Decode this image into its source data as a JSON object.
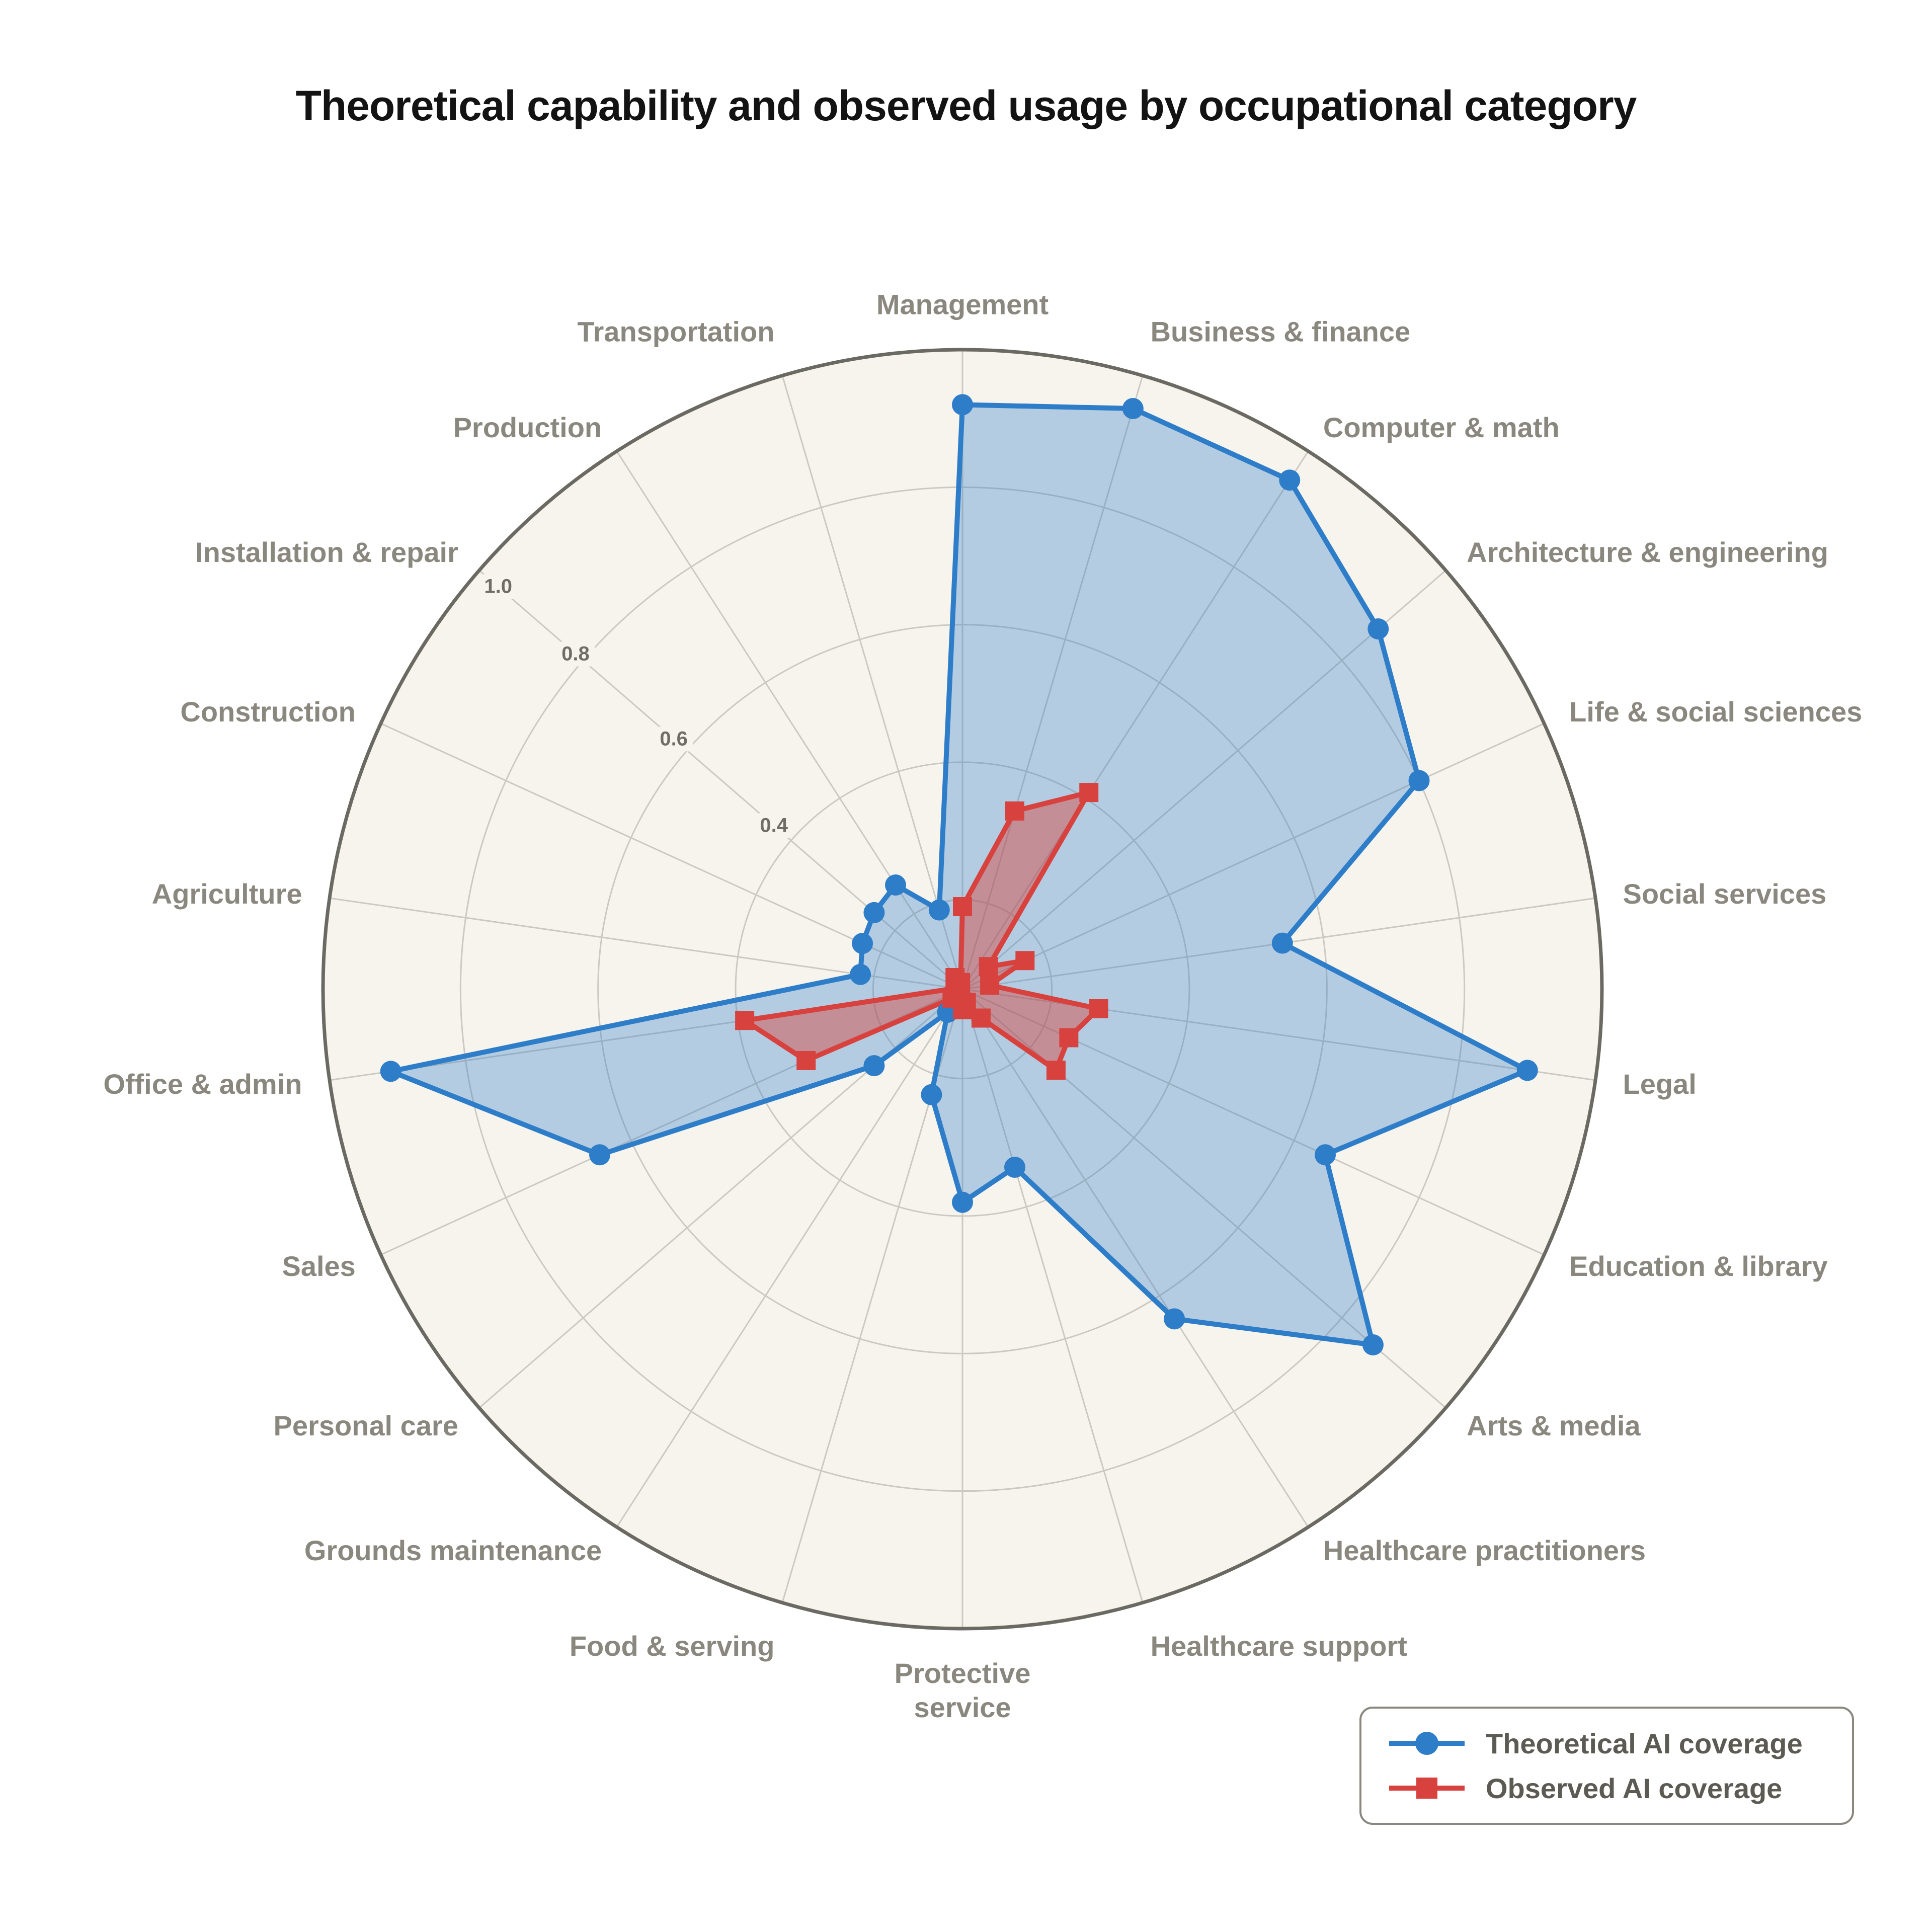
{
  "title": "Theoretical capability and observed usage by occupational category",
  "chart_data": {
    "type": "radar",
    "categories": [
      "Management",
      "Business & finance",
      "Computer & math",
      "Architecture & engineering",
      "Life & social sciences",
      "Social services",
      "Legal",
      "Education & library",
      "Arts & media",
      "Healthcare practitioners",
      "Healthcare support",
      "Protective\nservice",
      "Food & serving",
      "Grounds maintenance",
      "Personal care",
      "Sales",
      "Office & admin",
      "Agriculture",
      "Construction",
      "Installation & repair",
      "Production",
      "Transportation"
    ],
    "series": [
      {
        "name": "Theoretical AI coverage",
        "marker": "circle",
        "color": "#2e7dc9",
        "fill": "rgba(46,125,201,0.33)",
        "values": [
          0.92,
          0.95,
          0.95,
          0.87,
          0.8,
          0.54,
          0.9,
          0.65,
          0.86,
          0.64,
          0.34,
          0.38,
          0.23,
          0.11,
          0.24,
          0.65,
          0.91,
          0.22,
          0.23,
          0.24,
          0.25,
          0.19
        ]
      },
      {
        "name": "Observed AI coverage",
        "marker": "square",
        "color": "#d8423e",
        "fill": "rgba(216,66,62,0.45)",
        "values": [
          0.19,
          0.34,
          0.41,
          0.12,
          0.17,
          0.11,
          0.27,
          0.24,
          0.25,
          0.12,
          0.09,
          0.1,
          0.08,
          0.08,
          0.09,
          0.32,
          0.39,
          0.08,
          0.08,
          0.08,
          0.09,
          0.08
        ]
      }
    ],
    "radial_ticks": [
      0.4,
      0.6,
      0.8,
      1.0
    ],
    "radial_tick_labels": [
      "0.4",
      "0.6",
      "0.8",
      "1.0"
    ],
    "grid_circles": [
      0.2,
      0.4,
      0.6,
      0.8,
      1.0
    ],
    "r_min": 0.07,
    "r_max": 1.0,
    "start_angle_deg": 90,
    "direction": "clockwise",
    "grid": true,
    "legend_position": "bottom-right",
    "colors": {
      "disc": "#f7f4ee",
      "grid": "#ccc9c2",
      "ring": "#6a6962",
      "category_label": "#8a887e",
      "tick_label": "#6f6e66",
      "title": "#131313"
    }
  },
  "legend": {
    "items": [
      {
        "label": "Theoretical AI coverage",
        "color": "#2e7dc9",
        "marker": "circle"
      },
      {
        "label": "Observed AI coverage",
        "color": "#d8423e",
        "marker": "square"
      }
    ]
  }
}
